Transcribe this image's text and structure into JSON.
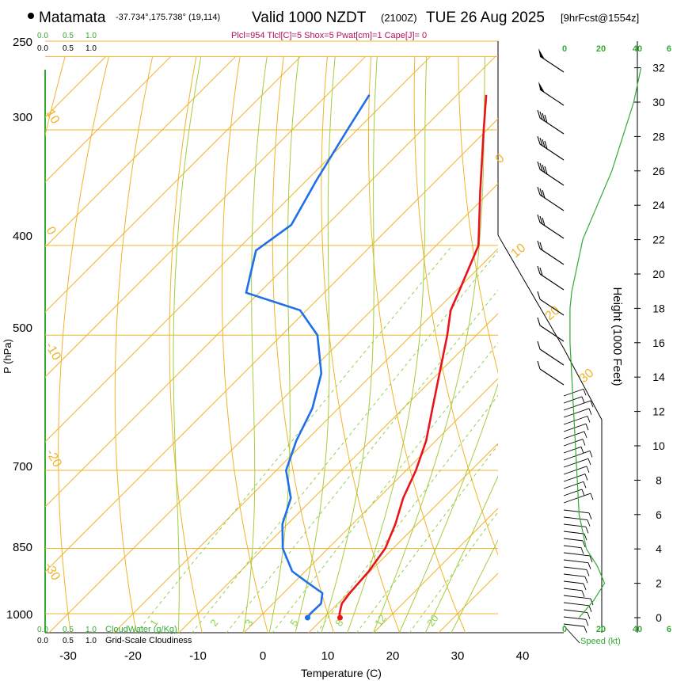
{
  "header": {
    "location": "Matamata",
    "coords": "-37.734°,175.738° (19,114)",
    "valid": "Valid 1000 NZDT",
    "utc": "(2100Z)",
    "date": "TUE 26 Aug 2025",
    "forecast": "[9hrFcst@1554z]",
    "params": "Plcl=954 Tlcl[C]=5 Shox=5 Pwat[cm]=1 Cape[J]= 0"
  },
  "colors": {
    "temperature": "#e8141b",
    "dewpoint": "#1f6fe8",
    "isotherm": "#f0b429",
    "dry_adiabat": "#f0b429",
    "moist_adiabat": "#a6cc3c",
    "mixing_ratio": "#8fd14f",
    "params_text": "#b0105a",
    "height_axis": "#33aa33"
  },
  "chart_data": {
    "type": "skew-t",
    "xlabel": "Temperature (C)",
    "ylabel": "P (hPa)",
    "x_ticks": [
      "-30",
      "-20",
      "-10",
      "0",
      "10",
      "20",
      "30",
      "40"
    ],
    "p_ticks": [
      "250",
      "300",
      "400",
      "500",
      "700",
      "850",
      "1000"
    ],
    "temperature": [
      {
        "p": 1010,
        "t": 12.5
      },
      {
        "p": 1000,
        "t": 11.8
      },
      {
        "p": 975,
        "t": 10.6
      },
      {
        "p": 950,
        "t": 10.2
      },
      {
        "p": 925,
        "t": 10.0
      },
      {
        "p": 900,
        "t": 9.8
      },
      {
        "p": 850,
        "t": 8.8
      },
      {
        "p": 800,
        "t": 6.6
      },
      {
        "p": 750,
        "t": 3.8
      },
      {
        "p": 700,
        "t": 1.5
      },
      {
        "p": 650,
        "t": -1.5
      },
      {
        "p": 600,
        "t": -5.5
      },
      {
        "p": 550,
        "t": -9.8
      },
      {
        "p": 500,
        "t": -14.5
      },
      {
        "p": 470,
        "t": -17.8
      },
      {
        "p": 450,
        "t": -19.3
      },
      {
        "p": 400,
        "t": -23.5
      },
      {
        "p": 350,
        "t": -31.5
      },
      {
        "p": 300,
        "t": -40.5
      },
      {
        "p": 275,
        "t": -45.5
      }
    ],
    "dewpoint": [
      {
        "p": 1010,
        "t": 7.5
      },
      {
        "p": 1000,
        "t": 7.3
      },
      {
        "p": 975,
        "t": 7.4
      },
      {
        "p": 950,
        "t": 6.0
      },
      {
        "p": 925,
        "t": 2.0
      },
      {
        "p": 900,
        "t": -2.0
      },
      {
        "p": 850,
        "t": -7.0
      },
      {
        "p": 800,
        "t": -10.8
      },
      {
        "p": 750,
        "t": -13.5
      },
      {
        "p": 700,
        "t": -18.5
      },
      {
        "p": 650,
        "t": -21.5
      },
      {
        "p": 600,
        "t": -24.0
      },
      {
        "p": 550,
        "t": -28.0
      },
      {
        "p": 500,
        "t": -34.5
      },
      {
        "p": 470,
        "t": -41.0
      },
      {
        "p": 450,
        "t": -52.0
      },
      {
        "p": 405,
        "t": -57.0
      },
      {
        "p": 380,
        "t": -55.5
      },
      {
        "p": 340,
        "t": -58.5
      },
      {
        "p": 300,
        "t": -61.5
      },
      {
        "p": 275,
        "t": -63.5
      }
    ],
    "surface_marker": {
      "p": 1010,
      "t": 12.5,
      "td": 7.5
    },
    "isotherm_labels": [
      "10",
      "0",
      "-10",
      "-20",
      "-30",
      "0",
      "10",
      "20",
      "30"
    ],
    "mixing_ratio_labels": [
      "1",
      "2",
      "3",
      "5",
      "8",
      "12",
      "20"
    ],
    "height_ticks": [
      "0",
      "2",
      "4",
      "6",
      "8",
      "10",
      "12",
      "14",
      "16",
      "18",
      "20",
      "22",
      "24",
      "26",
      "28",
      "30",
      "32"
    ],
    "height_label": "Height (1000 Feet)",
    "speed_ticks": [
      "0",
      "20",
      "40",
      "6"
    ],
    "speed_label": "Speed (kt)",
    "wind_speed_profile": [
      {
        "h": 0,
        "s": 8
      },
      {
        "h": 1,
        "s": 16
      },
      {
        "h": 2,
        "s": 22
      },
      {
        "h": 3,
        "s": 18
      },
      {
        "h": 4,
        "s": 12
      },
      {
        "h": 6,
        "s": 8
      },
      {
        "h": 8,
        "s": 7
      },
      {
        "h": 10,
        "s": 6
      },
      {
        "h": 12,
        "s": 5
      },
      {
        "h": 14,
        "s": 4
      },
      {
        "h": 16,
        "s": 3
      },
      {
        "h": 18,
        "s": 3
      },
      {
        "h": 19,
        "s": 4
      },
      {
        "h": 20,
        "s": 6
      },
      {
        "h": 22,
        "s": 10
      },
      {
        "h": 24,
        "s": 18
      },
      {
        "h": 26,
        "s": 26
      },
      {
        "h": 28,
        "s": 32
      },
      {
        "h": 30,
        "s": 38
      },
      {
        "h": 32,
        "s": 42
      }
    ],
    "cloud_axes": [
      {
        "ticks": [
          "0.0",
          "0.5",
          "1.0"
        ],
        "label": "CloudWater (g/Kg)"
      },
      {
        "ticks": [
          "0.0",
          "0.5",
          "1.0"
        ],
        "label": "Grid-Scale Cloudiness"
      }
    ],
    "top_cloud_ticks": [
      "0.0",
      "0.5",
      "1.0"
    ]
  }
}
